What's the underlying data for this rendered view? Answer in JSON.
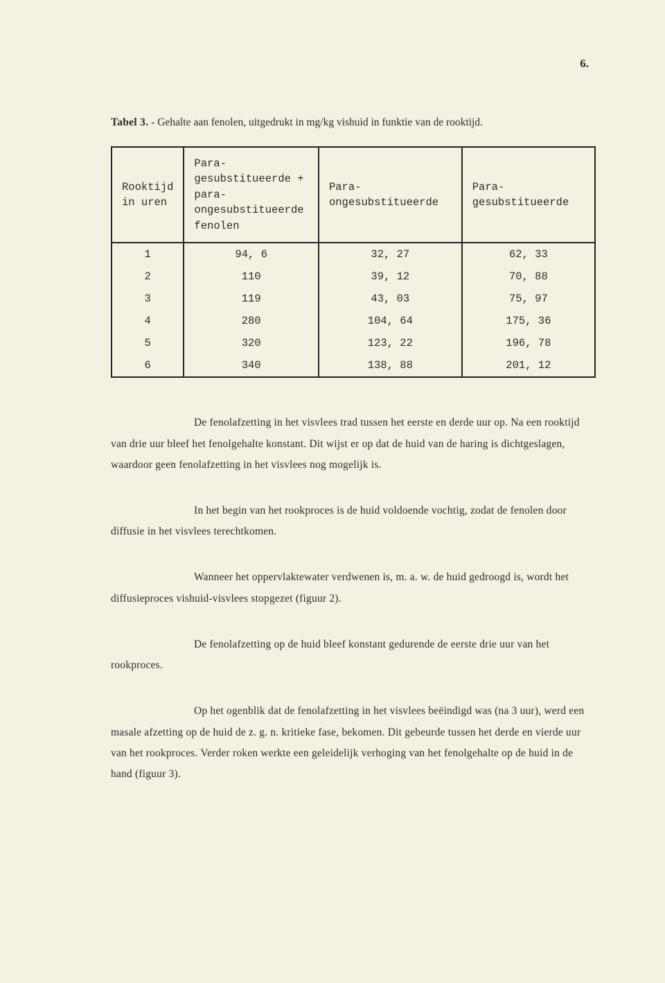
{
  "page_number": "6.",
  "caption_lead": "Tabel 3.",
  "caption_rest": " - Gehalte aan fenolen, uitgedrukt in mg/kg vishuid in funktie van de rooktijd.",
  "table": {
    "columns": [
      "Rooktijd in uren",
      "Para- gesubstitueerde + para- ongesubstitueerde fenolen",
      "Para- ongesubstitueerde",
      "Para- gesubstitueerde"
    ],
    "rows": [
      [
        "1",
        "94, 6",
        "32, 27",
        "62, 33"
      ],
      [
        "2",
        "110",
        "39, 12",
        "70, 88"
      ],
      [
        "3",
        "119",
        "43, 03",
        "75, 97"
      ],
      [
        "4",
        "280",
        "104, 64",
        "175, 36"
      ],
      [
        "5",
        "320",
        "123, 22",
        "196, 78"
      ],
      [
        "6",
        "340",
        "138, 88",
        "201, 12"
      ]
    ]
  },
  "p1": "De fenolafzetting in het visvlees trad tussen het eerste en derde uur op.  Na een rooktijd van drie uur bleef het fenolgehalte konstant.  Dit wijst er op dat de huid van de haring is dichtgeslagen, waardoor geen fenolafzetting in het visvlees nog mogelijk is.",
  "p2": "In het begin van het rookproces is de huid voldoende vochtig, zodat de fenolen door diffusie in het visvlees terechtkomen.",
  "p3": "Wanneer het oppervlaktewater verdwenen is, m. a. w. de huid gedroogd is, wordt het diffusieproces vishuid-visvlees stopgezet (figuur 2).",
  "p4": "De fenolafzetting op de huid bleef konstant gedurende de eerste drie uur van het rookproces.",
  "p5": "Op het ogenblik dat de fenolafzetting in het visvlees beëindigd was (na 3 uur), werd een masale afzetting op de huid de z. g. n. kritieke fase, bekomen.  Dit gebeurde tussen het derde en vierde uur van het rookproces.  Verder roken werkte een geleidelijk verhoging van het fenolgehalte op de huid in de hand (figuur 3)."
}
